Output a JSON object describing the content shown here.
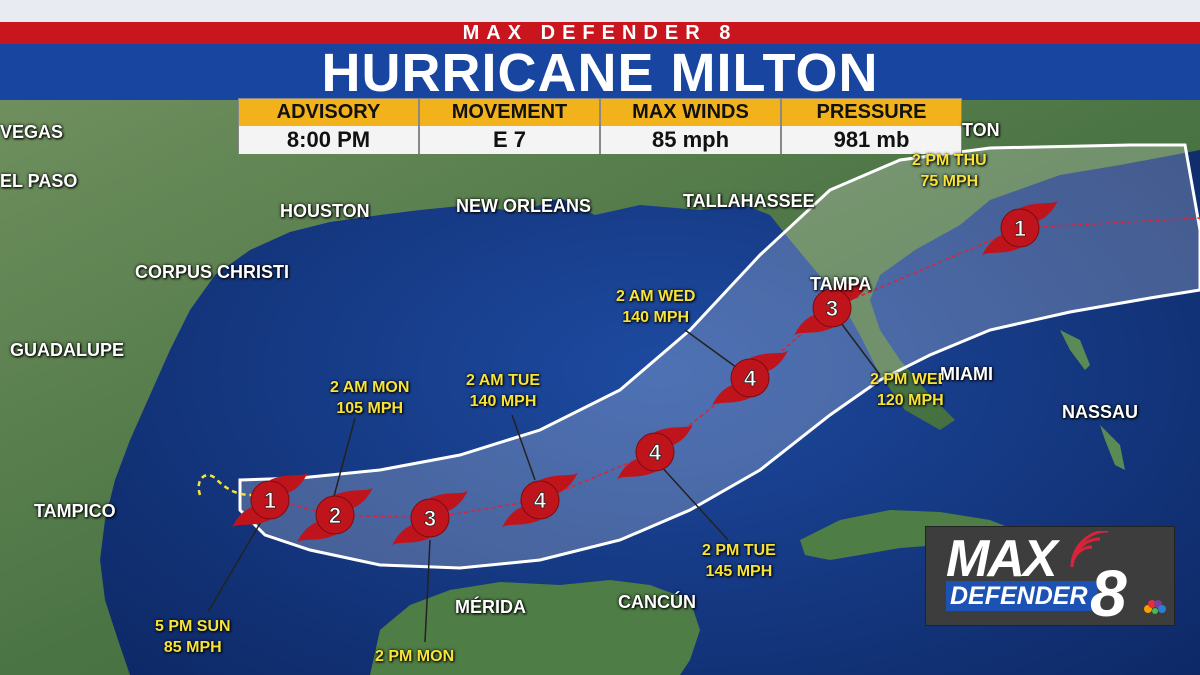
{
  "header": {
    "program": "MAX DEFENDER 8",
    "title": "HURRICANE MILTON"
  },
  "stats": [
    {
      "label": "ADVISORY",
      "value": "8:00 PM"
    },
    {
      "label": "MOVEMENT",
      "value": "E 7"
    },
    {
      "label": "MAX WINDS",
      "value": "85 mph"
    },
    {
      "label": "PRESSURE",
      "value": "981 mb"
    }
  ],
  "cities": {
    "vegas": "VEGAS",
    "el_paso": "EL PASO",
    "houston": "HOUSTON",
    "new_orleans": "NEW ORLEANS",
    "tallahassee": "TALLAHASSEE",
    "corpus_christi": "CORPUS CHRISTI",
    "guadalupe": "GUADALUPE",
    "tampa": "TAMPA",
    "miami": "MIAMI",
    "nassau": "NASSAU",
    "tampico": "TAMPICO",
    "merida": "MÉRIDA",
    "cancun": "CANCÚN",
    "charleston_partial": "TON"
  },
  "forecast_points": [
    {
      "time": "5 PM SUN",
      "wind": "85 MPH",
      "category": "1"
    },
    {
      "time": "2 AM MON",
      "wind": "105 MPH",
      "category": "2"
    },
    {
      "time": "2 PM MON",
      "wind": "",
      "category": "3"
    },
    {
      "time": "2 AM TUE",
      "wind": "140 MPH",
      "category": "4"
    },
    {
      "time": "2 PM TUE",
      "wind": "145 MPH",
      "category": "4"
    },
    {
      "time": "2 AM WED",
      "wind": "140 MPH",
      "category": "4"
    },
    {
      "time": "2 PM WED",
      "wind": "120 MPH",
      "category": "3"
    },
    {
      "time": "2 PM THU",
      "wind": "75 MPH",
      "category": "1"
    }
  ],
  "colors": {
    "header_red": "#c8151e",
    "title_blue": "#1745a0",
    "stat_gold": "#f2b21b",
    "forecast_yellow": "#f7e33a",
    "storm_red": "#c0141c",
    "ocean": "#173a86",
    "land": "#4f7a4a"
  },
  "logo": {
    "line1": "MAX",
    "line2": "DEFENDER",
    "number": "8",
    "icon": "peacock-icon"
  }
}
